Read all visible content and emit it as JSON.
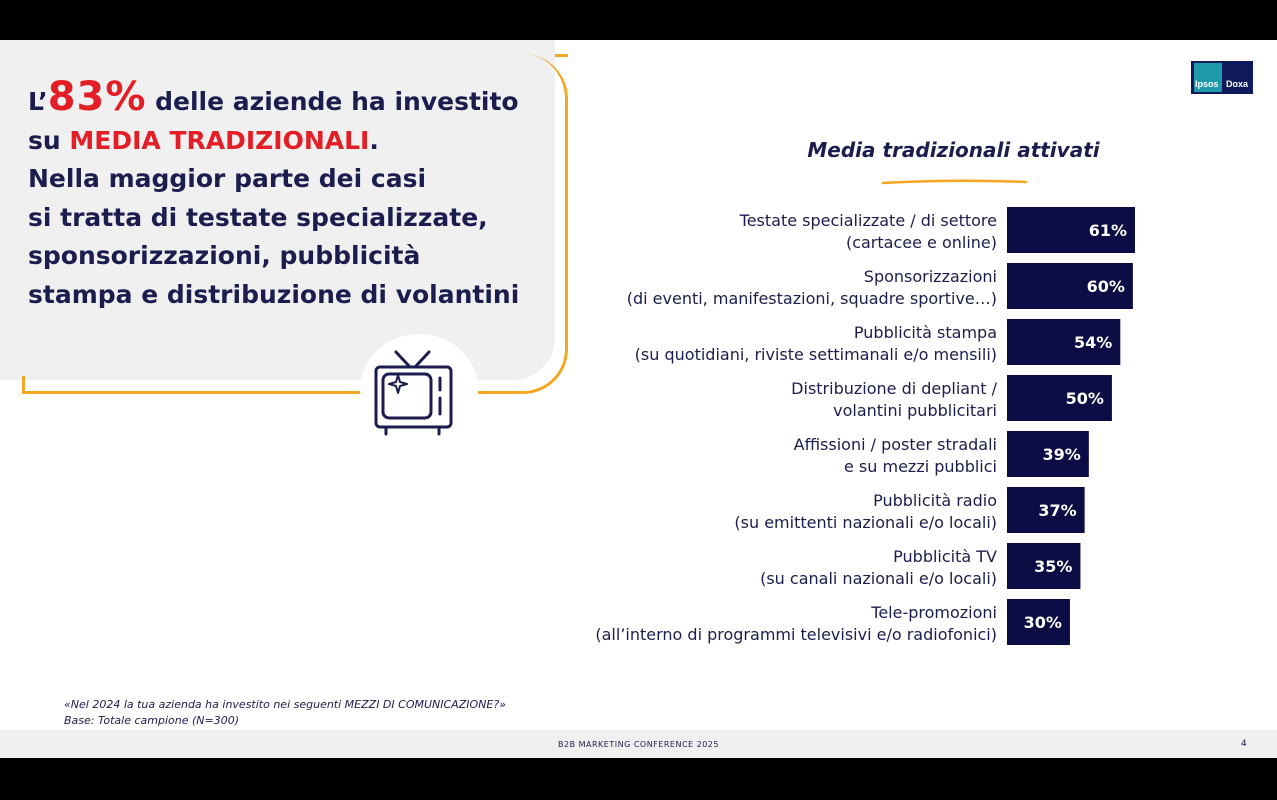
{
  "headline": {
    "prefix": "L’",
    "percent": "83%",
    "line1_rest": " delle aziende ha investito",
    "line2_pre": "su ",
    "line2_red": "MEDIA TRADIZIONALI",
    "line2_post": ".",
    "line3": "Nella maggior parte dei casi",
    "line4": "si tratta di testate specializzate,",
    "line5": "sponsorizzazioni, pubblicità",
    "line6": "stampa e distribuzione di volantini"
  },
  "logo": {
    "left": "Ipsos",
    "right": "Doxa"
  },
  "icons": {
    "tv": "tv-icon"
  },
  "colors": {
    "bar": "#0c0c45",
    "accent": "#f5a623",
    "red": "#e41e26",
    "text": "#1c1d4e"
  },
  "chart_data": {
    "type": "bar",
    "orientation": "horizontal",
    "title": "Media tradizionali attivati",
    "unit": "%",
    "categories": [
      [
        "Testate specializzate / di settore",
        "(cartacee e online)"
      ],
      [
        "Sponsorizzazioni",
        "(di eventi, manifestazioni, squadre sportive…)"
      ],
      [
        "Pubblicità stampa",
        "(su quotidiani, riviste settimanali e/o mensili)"
      ],
      [
        "Distribuzione di depliant /",
        "volantini pubblicitari"
      ],
      [
        "Affissioni / poster stradali",
        "e su mezzi pubblici"
      ],
      [
        "Pubblicità radio",
        "(su emittenti nazionali e/o locali)"
      ],
      [
        "Pubblicità TV",
        "(su canali nazionali e/o locali)"
      ],
      [
        "Tele-promozioni",
        "(all’interno di programmi televisivi e/o radiofonici)"
      ]
    ],
    "values": [
      61,
      60,
      54,
      50,
      39,
      37,
      35,
      30
    ],
    "value_labels": [
      "61%",
      "60%",
      "54%",
      "50%",
      "39%",
      "37%",
      "35%",
      "30%"
    ]
  },
  "footnote": {
    "question": "«Nel 2024 la tua azienda ha investito nei seguenti MEZZI DI COMUNICAZIONE?»",
    "base": "Base: Totale campione (N=300)"
  },
  "footer": {
    "event": "B2B MARKETING CONFERENCE 2025",
    "page": "4"
  }
}
